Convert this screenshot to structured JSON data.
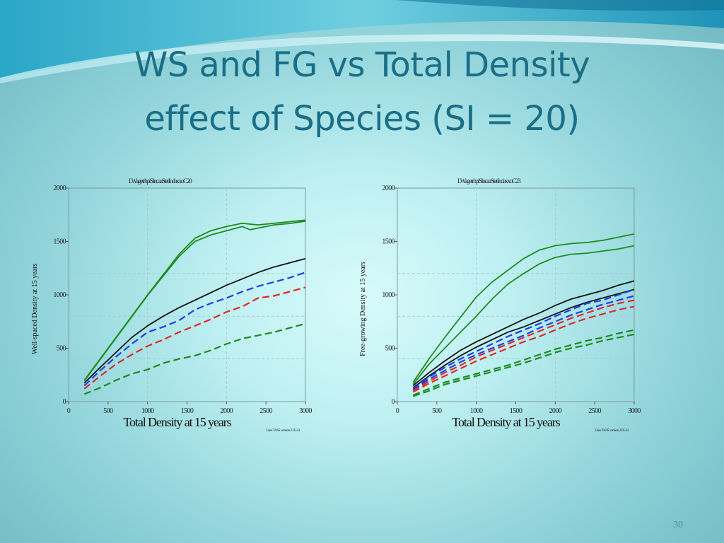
{
  "slide": {
    "title_line1": "WS and FG vs Total Density",
    "title_line2": "effect of Species (SI = 20)",
    "slide_number": "30"
  },
  "colors": {
    "green": "#1e8c1e",
    "black": "#111111",
    "blue": "#1f3fe8",
    "red": "#e02a2a",
    "darkgreen": "#1e8c1e",
    "title": "#1a6e86"
  },
  "chart_data": [
    {
      "type": "line",
      "header_text": "LWagetrbpiSlncaaStetIndaxxoC20",
      "footer_text": "Uses TASS version 2.05.24",
      "xlabel": "Total Density at 15 years",
      "ylabel": "Well-spaced Density at 15 years",
      "xlim": [
        0,
        3000
      ],
      "ylim": [
        0,
        2000
      ],
      "xticks": [
        0,
        500,
        1000,
        1500,
        2000,
        2500,
        3000
      ],
      "yticks": [
        0,
        500,
        1000,
        1500,
        2000
      ],
      "series": [
        {
          "name": "green solid upper",
          "color": "#1e8c1e",
          "dash": "solid",
          "x": [
            200,
            600,
            1000,
            1400,
            1600,
            1800,
            2000,
            2200,
            2400,
            2600,
            2800,
            3000
          ],
          "y": [
            200,
            600,
            1000,
            1380,
            1530,
            1600,
            1640,
            1670,
            1655,
            1670,
            1685,
            1700
          ]
        },
        {
          "name": "green solid lower",
          "color": "#1e8c1e",
          "dash": "solid",
          "x": [
            200,
            600,
            1000,
            1400,
            1600,
            1800,
            2000,
            2200,
            2300,
            2400,
            2600,
            2800,
            3000
          ],
          "y": [
            195,
            595,
            995,
            1360,
            1500,
            1560,
            1600,
            1640,
            1610,
            1625,
            1655,
            1668,
            1690
          ]
        },
        {
          "name": "black solid",
          "color": "#111111",
          "dash": "solid",
          "x": [
            200,
            400,
            600,
            800,
            1000,
            1200,
            1400,
            1600,
            1800,
            2000,
            2200,
            2400,
            2600,
            2800,
            3000
          ],
          "y": [
            175,
            320,
            460,
            600,
            710,
            800,
            880,
            950,
            1020,
            1090,
            1150,
            1210,
            1260,
            1300,
            1340
          ]
        },
        {
          "name": "blue dashed",
          "color": "#1f3fe8",
          "dash": "dashed",
          "x": [
            200,
            400,
            600,
            800,
            1000,
            1200,
            1400,
            1600,
            1800,
            2000,
            2200,
            2400,
            2600,
            2800,
            3000
          ],
          "y": [
            150,
            290,
            420,
            540,
            650,
            700,
            760,
            860,
            920,
            970,
            1030,
            1080,
            1120,
            1160,
            1210
          ]
        },
        {
          "name": "red dashed",
          "color": "#e02a2a",
          "dash": "dashed",
          "x": [
            200,
            400,
            600,
            800,
            1000,
            1200,
            1400,
            1600,
            1800,
            2000,
            2200,
            2400,
            2600,
            2800,
            3000
          ],
          "y": [
            120,
            240,
            350,
            440,
            520,
            580,
            650,
            710,
            770,
            840,
            890,
            970,
            990,
            1030,
            1070
          ]
        },
        {
          "name": "green dashed",
          "color": "#1e8c1e",
          "dash": "dashed",
          "x": [
            200,
            400,
            600,
            800,
            1000,
            1200,
            1400,
            1600,
            1800,
            2000,
            2200,
            2400,
            2600,
            2800,
            3000
          ],
          "y": [
            70,
            130,
            200,
            260,
            300,
            360,
            400,
            430,
            480,
            540,
            590,
            620,
            650,
            690,
            730
          ]
        }
      ]
    },
    {
      "type": "line",
      "header_text": "LWagetrbpiSlncaaStetIndaxxoC23",
      "footer_text": "Uses TASS version 2.05.24",
      "xlabel": "Total Density at 15 years",
      "ylabel": "Free-growing Density at 15 years",
      "xlim": [
        0,
        3000
      ],
      "ylim": [
        0,
        2000
      ],
      "xticks": [
        0,
        500,
        1000,
        1500,
        2000,
        2500,
        3000
      ],
      "yticks": [
        0,
        500,
        1000,
        1500,
        2000
      ],
      "series": [
        {
          "name": "green solid upper",
          "color": "#1e8c1e",
          "dash": "solid",
          "x": [
            200,
            400,
            600,
            800,
            1000,
            1200,
            1400,
            1600,
            1800,
            2000,
            2200,
            2400,
            2600,
            2800,
            3000
          ],
          "y": [
            180,
            400,
            600,
            790,
            980,
            1120,
            1230,
            1340,
            1420,
            1460,
            1480,
            1490,
            1510,
            1540,
            1570
          ]
        },
        {
          "name": "green solid lower",
          "color": "#1e8c1e",
          "dash": "solid",
          "x": [
            200,
            400,
            600,
            800,
            1000,
            1200,
            1400,
            1600,
            1800,
            2000,
            2200,
            2400,
            2600,
            2800,
            3000
          ],
          "y": [
            160,
            350,
            500,
            650,
            800,
            960,
            1100,
            1200,
            1290,
            1350,
            1380,
            1390,
            1410,
            1430,
            1460
          ]
        },
        {
          "name": "black solid upper",
          "color": "#111111",
          "dash": "solid",
          "x": [
            200,
            400,
            600,
            800,
            1000,
            1200,
            1400,
            1600,
            1800,
            2000,
            2200,
            2400,
            2600,
            2800,
            3000
          ],
          "y": [
            150,
            270,
            380,
            480,
            560,
            630,
            700,
            770,
            830,
            900,
            960,
            1000,
            1040,
            1090,
            1130
          ]
        },
        {
          "name": "black solid lower",
          "color": "#111111",
          "dash": "solid",
          "x": [
            200,
            400,
            600,
            800,
            1000,
            1200,
            1400,
            1600,
            1800,
            2000,
            2200,
            2400,
            2600,
            2800,
            3000
          ],
          "y": [
            130,
            240,
            340,
            430,
            510,
            580,
            650,
            700,
            760,
            820,
            880,
            930,
            970,
            1010,
            1050
          ]
        },
        {
          "name": "blue dashed upper",
          "color": "#1f3fe8",
          "dash": "dashed",
          "x": [
            200,
            400,
            600,
            800,
            1000,
            1200,
            1400,
            1600,
            1800,
            2000,
            2200,
            2400,
            2600,
            2800,
            3000
          ],
          "y": [
            120,
            230,
            320,
            400,
            470,
            540,
            610,
            670,
            730,
            800,
            860,
            920,
            950,
            1000,
            1050
          ]
        },
        {
          "name": "blue dashed lower",
          "color": "#1f3fe8",
          "dash": "dashed",
          "x": [
            200,
            400,
            600,
            800,
            1000,
            1200,
            1400,
            1600,
            1800,
            2000,
            2200,
            2400,
            2600,
            2800,
            3000
          ],
          "y": [
            110,
            210,
            290,
            370,
            440,
            500,
            560,
            620,
            690,
            750,
            810,
            860,
            910,
            950,
            990
          ]
        },
        {
          "name": "red dashed upper",
          "color": "#e02a2a",
          "dash": "dashed",
          "x": [
            200,
            400,
            600,
            800,
            1000,
            1200,
            1400,
            1600,
            1800,
            2000,
            2200,
            2400,
            2600,
            2800,
            3000
          ],
          "y": [
            100,
            190,
            270,
            340,
            420,
            480,
            540,
            600,
            660,
            720,
            780,
            830,
            880,
            920,
            950
          ]
        },
        {
          "name": "red dashed lower",
          "color": "#e02a2a",
          "dash": "dashed",
          "x": [
            200,
            400,
            600,
            800,
            1000,
            1200,
            1400,
            1600,
            1800,
            2000,
            2200,
            2400,
            2600,
            2800,
            3000
          ],
          "y": [
            90,
            170,
            240,
            310,
            380,
            440,
            500,
            560,
            610,
            670,
            730,
            780,
            820,
            860,
            890
          ]
        },
        {
          "name": "green dashed upper",
          "color": "#1e8c1e",
          "dash": "dashed",
          "x": [
            200,
            400,
            600,
            800,
            1000,
            1200,
            1400,
            1600,
            1800,
            2000,
            2200,
            2400,
            2600,
            2800,
            3000
          ],
          "y": [
            60,
            120,
            180,
            220,
            260,
            300,
            340,
            390,
            440,
            490,
            530,
            570,
            600,
            640,
            670
          ]
        },
        {
          "name": "green dashed lower",
          "color": "#1e8c1e",
          "dash": "dashed",
          "x": [
            200,
            400,
            600,
            800,
            1000,
            1200,
            1400,
            1600,
            1800,
            2000,
            2200,
            2400,
            2600,
            2800,
            3000
          ],
          "y": [
            50,
            100,
            160,
            200,
            240,
            280,
            320,
            360,
            410,
            460,
            500,
            530,
            570,
            600,
            630
          ]
        }
      ]
    }
  ]
}
